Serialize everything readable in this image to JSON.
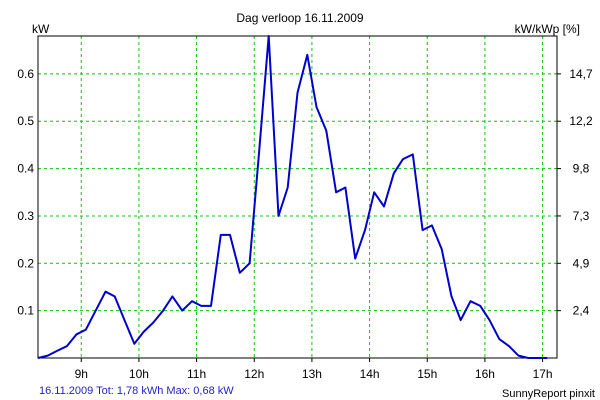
{
  "chart_data": {
    "type": "line",
    "title": "Dag  verloop 16.11.2009",
    "ylabel_left": "kW",
    "ylabel_right": "kW/kWp [%]",
    "ylim": [
      0,
      0.68
    ],
    "xlim": [
      8.25,
      17.25
    ],
    "grid": true,
    "x_ticks": [
      {
        "x": 9,
        "label": "9h"
      },
      {
        "x": 10,
        "label": "10h"
      },
      {
        "x": 11,
        "label": "11h"
      },
      {
        "x": 12,
        "label": "12h"
      },
      {
        "x": 13,
        "label": "13h"
      },
      {
        "x": 14,
        "label": "14h"
      },
      {
        "x": 15,
        "label": "15h"
      },
      {
        "x": 16,
        "label": "16h"
      },
      {
        "x": 17,
        "label": "17h"
      }
    ],
    "y_ticks_left": [
      {
        "value": 0.1,
        "label": "0.1"
      },
      {
        "value": 0.2,
        "label": "0.2"
      },
      {
        "value": 0.3,
        "label": "0.3"
      },
      {
        "value": 0.4,
        "label": "0.4"
      },
      {
        "value": 0.5,
        "label": "0.5"
      },
      {
        "value": 0.6,
        "label": "0.6"
      }
    ],
    "y_ticks_right": [
      {
        "value": 0.1,
        "label": "2,4"
      },
      {
        "value": 0.2,
        "label": "4,9"
      },
      {
        "value": 0.3,
        "label": "7,3"
      },
      {
        "value": 0.4,
        "label": "9,8"
      },
      {
        "value": 0.5,
        "label": "12,2"
      },
      {
        "value": 0.6,
        "label": "14,7"
      }
    ],
    "series": [
      {
        "color": "#0000cc",
        "x": [
          8.25,
          8.42,
          8.58,
          8.75,
          8.92,
          9.08,
          9.25,
          9.42,
          9.58,
          9.75,
          9.92,
          10.08,
          10.25,
          10.42,
          10.58,
          10.75,
          10.92,
          11.08,
          11.25,
          11.42,
          11.58,
          11.75,
          11.92,
          12.08,
          12.25,
          12.42,
          12.58,
          12.75,
          12.92,
          13.08,
          13.25,
          13.42,
          13.58,
          13.75,
          13.92,
          14.08,
          14.25,
          14.42,
          14.58,
          14.75,
          14.92,
          15.08,
          15.25,
          15.42,
          15.58,
          15.75,
          15.92,
          16.08,
          16.25,
          16.42,
          16.58,
          16.75,
          16.92,
          17.08
        ],
        "y": [
          0.0,
          0.005,
          0.015,
          0.025,
          0.05,
          0.06,
          0.1,
          0.14,
          0.13,
          0.08,
          0.03,
          0.055,
          0.075,
          0.1,
          0.13,
          0.1,
          0.12,
          0.11,
          0.11,
          0.26,
          0.26,
          0.18,
          0.2,
          0.43,
          0.68,
          0.3,
          0.36,
          0.56,
          0.64,
          0.53,
          0.48,
          0.35,
          0.36,
          0.21,
          0.27,
          0.35,
          0.32,
          0.39,
          0.42,
          0.43,
          0.27,
          0.28,
          0.23,
          0.13,
          0.08,
          0.12,
          0.11,
          0.08,
          0.04,
          0.025,
          0.005,
          0.0,
          0.0,
          0.0
        ]
      }
    ]
  },
  "footer": {
    "summary": "16.11.2009 Tot: 1,78 kWh Max: 0,68 kW",
    "credit": "SunnyReport pinxit"
  }
}
